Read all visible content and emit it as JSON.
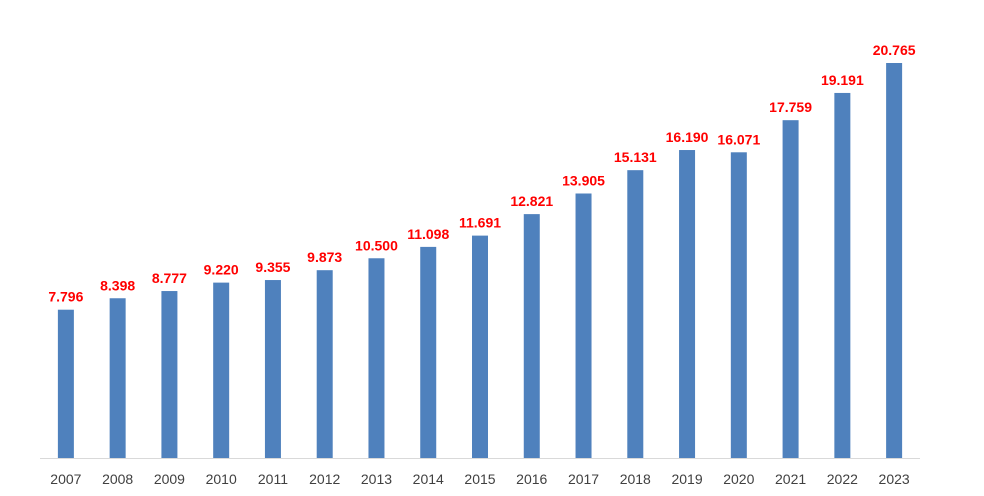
{
  "chart_data": {
    "type": "bar",
    "title": "",
    "xlabel": "",
    "ylabel": "",
    "categories": [
      "2007",
      "2008",
      "2009",
      "2010",
      "2011",
      "2012",
      "2013",
      "2014",
      "2015",
      "2016",
      "2017",
      "2018",
      "2019",
      "2020",
      "2021",
      "2022",
      "2023"
    ],
    "values": [
      7.796,
      8.398,
      8.777,
      9.22,
      9.355,
      9.873,
      10.5,
      11.098,
      11.691,
      12.821,
      13.905,
      15.131,
      16.19,
      16.071,
      17.759,
      19.191,
      20.765
    ],
    "value_labels": [
      "7.796",
      "8.398",
      "8.777",
      "9.220",
      "9.355",
      "9.873",
      "10.500",
      "11.098",
      "11.691",
      "12.821",
      "13.905",
      "15.131",
      "16.190",
      "16.071",
      "17.759",
      "19.191",
      "20.765"
    ],
    "ylim": [
      0,
      22.5
    ],
    "grid": false,
    "legend": "none",
    "colors": {
      "bar": "#4f81bd",
      "label": "#ff0000",
      "axis": "#d9d9d9",
      "tick_text": "#404040"
    }
  }
}
